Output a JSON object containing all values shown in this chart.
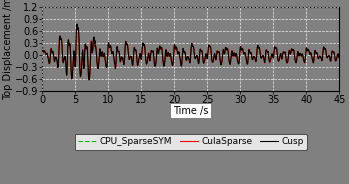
{
  "title": "",
  "xlabel": "Time /s",
  "ylabel": "Top Displacement /m",
  "xlim": [
    0,
    45
  ],
  "ylim": [
    -0.9,
    1.2
  ],
  "xticks": [
    0,
    5,
    10,
    15,
    20,
    25,
    30,
    35,
    40,
    45
  ],
  "yticks": [
    -0.9,
    -0.6,
    -0.3,
    0,
    0.3,
    0.6,
    0.9,
    1.2
  ],
  "bg_color": "#808080",
  "plot_bg_color": "#808080",
  "grid_color": "white",
  "line1_color": "#000000",
  "line2_color": "#ff0000",
  "line3_color": "#00bb00",
  "line1_label": "Cusp",
  "line2_label": "CulaSparse",
  "line3_label": "CPU_SparseSYM",
  "line1_style": "-",
  "line2_style": "-",
  "line3_style": "--",
  "line_width": 0.8,
  "font_size": 7,
  "legend_font_size": 6.5
}
